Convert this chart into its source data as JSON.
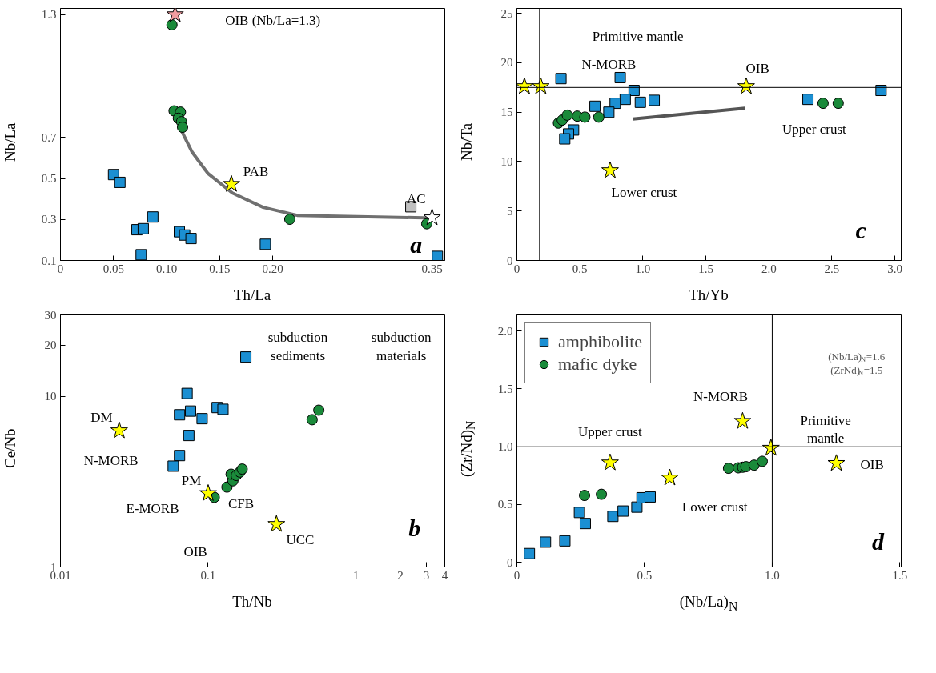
{
  "chart_data": [
    {
      "type": "scatter",
      "xlabel": "Th/La",
      "ylabel": "Nb/La",
      "xlim": [
        0,
        0.362
      ],
      "ylim": [
        0.1,
        1.33
      ],
      "xticks": [
        0,
        0.05,
        {
          "value": 0.1,
          "label": "0.10"
        },
        0.15,
        {
          "value": 0.2,
          "label": "0.20"
        },
        0.35
      ],
      "yticks": [
        0.1,
        0.3,
        0.5,
        0.7,
        1.3
      ],
      "series": [
        {
          "type": "line",
          "color": "#707070",
          "x": [
            0.114,
            0.124,
            0.139,
            0.162,
            0.191,
            0.223,
            0.35
          ],
          "values": [
            0.733,
            0.629,
            0.524,
            0.429,
            0.359,
            0.32,
            0.307
          ]
        },
        {
          "marker": "square",
          "color": "#1b8fd2",
          "x": [
            0.05,
            0.056,
            0.072,
            0.078,
            0.087,
            0.076,
            0.112,
            0.117,
            0.123,
            0.193,
            0.355
          ],
          "values": [
            0.519,
            0.481,
            0.25,
            0.255,
            0.312,
            0.128,
            0.24,
            0.224,
            0.207,
            0.179,
            0.12
          ]
        },
        {
          "marker": "circle",
          "color": "#1a8a3a",
          "x": [
            0.105,
            0.107,
            0.113,
            0.111,
            0.114,
            0.115,
            0.216,
            0.345
          ],
          "values": [
            1.25,
            0.83,
            0.824,
            0.794,
            0.777,
            0.75,
            0.301,
            0.279
          ]
        },
        {
          "marker": "square",
          "color": "#c0c0c0",
          "x": [
            0.33
          ],
          "values": [
            0.362
          ]
        },
        {
          "marker": "star",
          "color": "#f29ca0",
          "x": [
            0.108
          ],
          "values": [
            1.3
          ]
        },
        {
          "marker": "star",
          "color": "#ffff00",
          "x": [
            0.161
          ],
          "values": [
            0.472
          ]
        },
        {
          "marker": "star",
          "color": "#ffffff",
          "x": [
            0.35
          ],
          "values": [
            0.309
          ]
        }
      ],
      "annotations": [
        "OIB (Nb/La=1.3)",
        "PAB",
        "AC",
        "a"
      ]
    },
    {
      "type": "scatter",
      "xlabel": "Th/Yb",
      "ylabel": "Nb/Ta",
      "xlim": [
        0,
        3.05
      ],
      "ylim": [
        0,
        25.5
      ],
      "xticks": [
        0,
        0.5,
        {
          "value": 1,
          "label": "1.0"
        },
        1.5,
        {
          "value": 2,
          "label": "2.0"
        },
        2.5,
        {
          "value": 3,
          "label": "3.0"
        }
      ],
      "yticks": [
        0,
        5,
        10,
        15,
        20,
        25
      ],
      "ref_lines": [
        {
          "axis": "x",
          "value": 0.18,
          "color": "#000000"
        },
        {
          "axis": "y",
          "value": 17.5,
          "color": "#000000"
        }
      ],
      "series": [
        {
          "type": "line",
          "color": "#555555",
          "x": [
            0.92,
            1.81
          ],
          "values": [
            14.3,
            15.4
          ]
        },
        {
          "marker": "square",
          "color": "#1b8fd2",
          "x": [
            0.35,
            0.82,
            0.93,
            0.86,
            0.78,
            0.98,
            1.09,
            0.62,
            0.73,
            0.45,
            0.41,
            0.38,
            2.31,
            2.89
          ],
          "values": [
            18.4,
            18.5,
            17.2,
            16.3,
            15.9,
            16.0,
            16.2,
            15.6,
            15.0,
            13.2,
            12.8,
            12.3,
            16.3,
            17.2
          ]
        },
        {
          "marker": "circle",
          "color": "#1a8a3a",
          "x": [
            0.33,
            0.36,
            0.4,
            0.48,
            0.54,
            0.65,
            2.43,
            2.55
          ],
          "values": [
            13.9,
            14.2,
            14.7,
            14.6,
            14.5,
            14.5,
            15.9,
            15.9
          ]
        },
        {
          "marker": "star",
          "color": "#ffff00",
          "x": [
            0.06,
            0.19,
            1.82,
            0.74
          ],
          "values": [
            17.6,
            17.6,
            17.6,
            9.1
          ]
        }
      ],
      "annotations": [
        "Primitive mantle",
        "N-MORB",
        "OIB",
        "Upper crust",
        "Lower crust",
        "c"
      ]
    },
    {
      "type": "scatter",
      "log": "xy",
      "xlabel": "Th/Nb",
      "ylabel": "Ce/Nb",
      "xlim": [
        0.01,
        4
      ],
      "ylim": [
        1,
        30
      ],
      "xticks": [
        0.01,
        0.1,
        1,
        2,
        3,
        4
      ],
      "yticks": [
        1,
        10,
        20,
        30
      ],
      "series": [
        {
          "marker": "square",
          "color": "#1b8fd2",
          "x": [
            0.072,
            0.064,
            0.076,
            0.091,
            0.115,
            0.126,
            0.074,
            0.064,
            0.058,
            0.18
          ],
          "values": [
            10.4,
            7.8,
            8.2,
            7.4,
            8.6,
            8.4,
            5.9,
            4.5,
            3.9,
            17.0
          ]
        },
        {
          "marker": "circle",
          "color": "#1a8a3a",
          "x": [
            0.11,
            0.134,
            0.147,
            0.143,
            0.155,
            0.164,
            0.17,
            0.506,
            0.561
          ],
          "values": [
            2.56,
            2.94,
            3.2,
            3.5,
            3.44,
            3.6,
            3.75,
            7.3,
            8.3
          ]
        },
        {
          "marker": "star",
          "color": "#ffff00",
          "x": [
            0.025,
            0.1,
            0.29
          ],
          "values": [
            6.3,
            2.7,
            1.78
          ]
        }
      ],
      "annotations": [
        "DM",
        "N-MORB",
        "PM",
        "E-MORB",
        "CFB",
        "OIB",
        "UCC",
        "subduction\nsediments",
        "subduction\nmaterials",
        "b"
      ]
    },
    {
      "type": "scatter",
      "xlabel": "(Nb/La)$_{N}$",
      "ylabel": "(Zr/Nd)$_{N}$",
      "xlim": [
        0,
        1.505
      ],
      "ylim": [
        -0.04,
        2.14
      ],
      "xticks": [
        0,
        0.5,
        {
          "value": 1,
          "label": "1.0"
        },
        1.5
      ],
      "yticks": [
        0,
        0.5,
        {
          "value": 1,
          "label": "1.0"
        },
        1.5,
        {
          "value": 2,
          "label": "2.0"
        }
      ],
      "legend": "top left",
      "ref_lines": [
        {
          "axis": "x",
          "value": 1.0,
          "color": "#000000"
        },
        {
          "axis": "y",
          "value": 1.0,
          "color": "#000000"
        }
      ],
      "series": [
        {
          "name": "amphibolite",
          "marker": "square",
          "color": "#1b8fd2",
          "x": [
            0.049,
            0.112,
            0.188,
            0.245,
            0.268,
            0.376,
            0.416,
            0.47,
            0.49,
            0.522
          ],
          "values": [
            0.076,
            0.175,
            0.186,
            0.432,
            0.336,
            0.398,
            0.444,
            0.478,
            0.559,
            0.566
          ]
        },
        {
          "name": "mafic dyke",
          "marker": "circle",
          "color": "#1a8a3a",
          "x": [
            0.265,
            0.331,
            0.829,
            0.867,
            0.884,
            0.897,
            0.929,
            0.961
          ],
          "values": [
            0.579,
            0.589,
            0.814,
            0.818,
            0.823,
            0.828,
            0.841,
            0.874
          ]
        },
        {
          "marker": "star",
          "color": "#ffff00",
          "x": [
            0.365,
            0.884,
            0.995,
            1.251,
            0.599
          ],
          "values": [
            0.862,
            1.221,
            0.989,
            0.857,
            0.731
          ]
        }
      ],
      "annotations": [
        "Upper crust",
        "N-MORB",
        "Primitive\nmantle",
        "OIB",
        "Lower crust",
        "(Nb/La)$_{N}$=1.6",
        "(ZrNd)$_{N}$=1.5",
        "d"
      ]
    }
  ]
}
